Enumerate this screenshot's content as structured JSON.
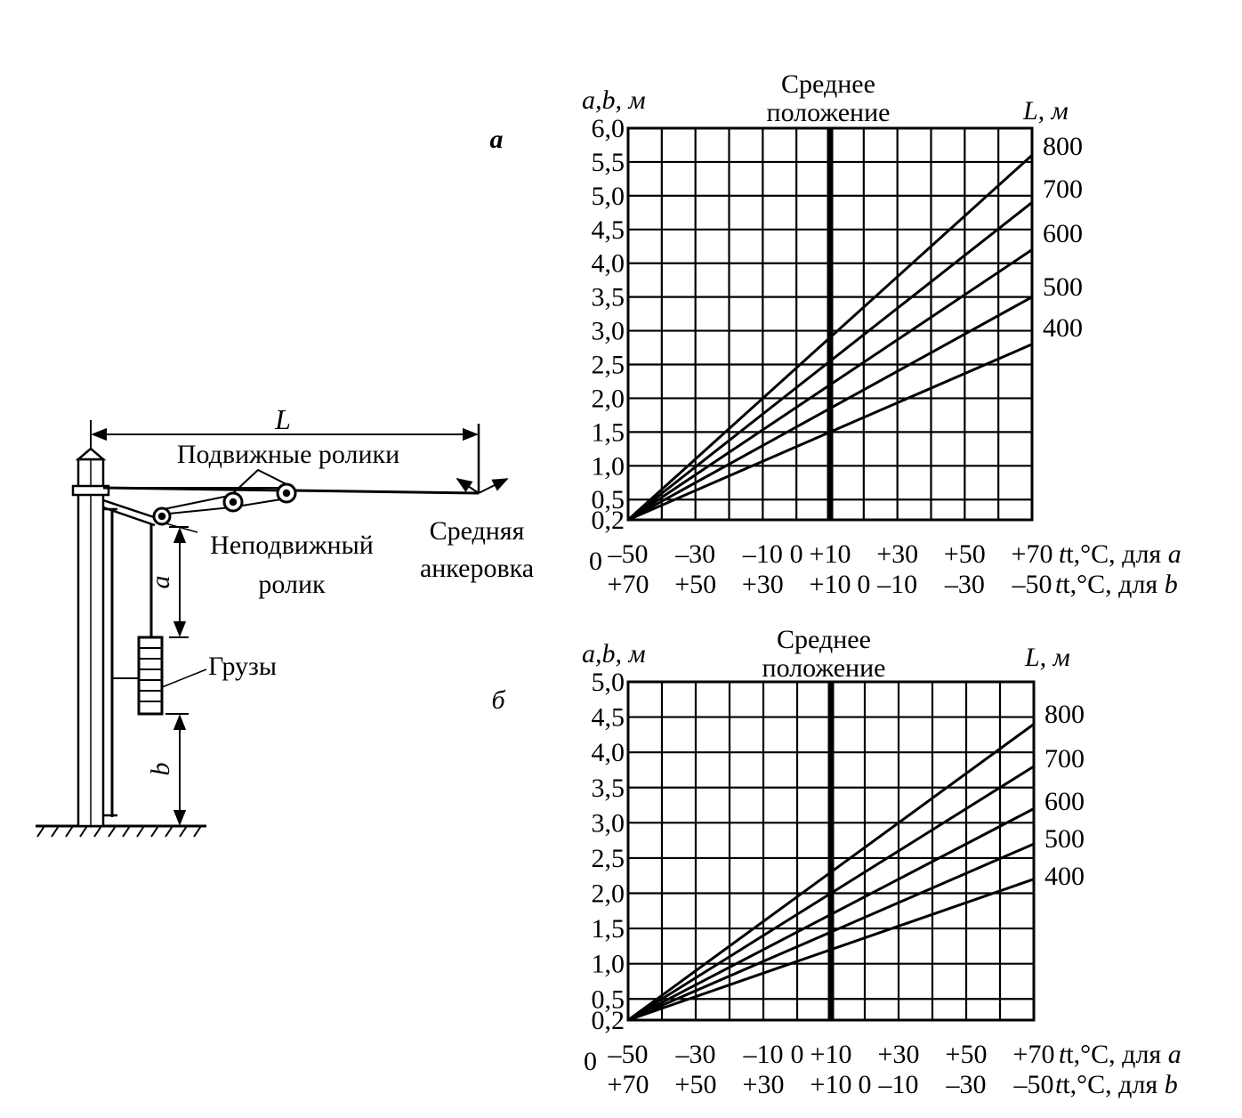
{
  "diagram": {
    "length_label": "L",
    "movable_rollers_label": "Подвижные ролики",
    "fixed_roller_label_line1": "Неподвижный",
    "fixed_roller_label_line2": "ролик",
    "mid_anchor_label_line1": "Средняя",
    "mid_anchor_label_line2": "анкеровка",
    "distance_a_label": "a",
    "weights_label": "Грузы",
    "distance_b_label": "b"
  },
  "chart_data": [
    {
      "type": "line",
      "panel_label": "a",
      "title_line1": "Среднее",
      "title_line2": "положение",
      "ylabel": "a,b, м",
      "series_label_header": "L, м",
      "ylim": [
        0.2,
        6.0
      ],
      "y_ticks": [
        "6,0",
        "5,5",
        "5,0",
        "4,5",
        "4,0",
        "3,5",
        "3,0",
        "2,5",
        "2,0",
        "1,5",
        "1,0",
        "0,5",
        "0,2"
      ],
      "origin_label": "0",
      "x_ticks_a": [
        "–50",
        "–30",
        "–10",
        "0",
        "+10",
        "+30",
        "+50",
        "+70"
      ],
      "x_label_a_prefix": "t,°C, для ",
      "x_label_a_var": "a",
      "x_ticks_b": [
        "+70",
        "+50",
        "+30",
        "+10",
        "0",
        "–10",
        "–30",
        "–50"
      ],
      "x_label_b_prefix": "t,°C, для ",
      "x_label_b_var": "b",
      "xlim": [
        -50,
        70
      ],
      "middle_position_t": 10,
      "series": [
        {
          "name": "800",
          "x": [
            -50,
            70
          ],
          "y": [
            0.2,
            5.6
          ]
        },
        {
          "name": "700",
          "x": [
            -50,
            70
          ],
          "y": [
            0.2,
            4.9
          ]
        },
        {
          "name": "600",
          "x": [
            -50,
            70
          ],
          "y": [
            0.2,
            4.2
          ]
        },
        {
          "name": "500",
          "x": [
            -50,
            70
          ],
          "y": [
            0.2,
            3.5
          ]
        },
        {
          "name": "400",
          "x": [
            -50,
            70
          ],
          "y": [
            0.2,
            2.8
          ]
        }
      ]
    },
    {
      "type": "line",
      "panel_label": "б",
      "title_line1": "Среднее",
      "title_line2": "положение",
      "ylabel": "a,b, м",
      "series_label_header": "L, м",
      "ylim": [
        0.2,
        5.0
      ],
      "y_ticks": [
        "5,0",
        "4,5",
        "4,0",
        "3,5",
        "3,0",
        "2,5",
        "2,0",
        "1,5",
        "1,0",
        "0,5",
        "0,2"
      ],
      "origin_label": "0",
      "x_ticks_a": [
        "–50",
        "–30",
        "–10",
        "0",
        "+10",
        "+30",
        "+50",
        "+70"
      ],
      "x_label_a_prefix": "t,°C, для ",
      "x_label_a_var": "a",
      "x_ticks_b": [
        "+70",
        "+50",
        "+30",
        "+10",
        "0",
        "–10",
        "–30",
        "–50"
      ],
      "x_label_b_prefix": "t,°C, для ",
      "x_label_b_var": "b",
      "xlim": [
        -50,
        70
      ],
      "middle_position_t": 10,
      "series": [
        {
          "name": "800",
          "x": [
            -50,
            70
          ],
          "y": [
            0.2,
            4.4
          ]
        },
        {
          "name": "700",
          "x": [
            -50,
            70
          ],
          "y": [
            0.2,
            3.8
          ]
        },
        {
          "name": "600",
          "x": [
            -50,
            70
          ],
          "y": [
            0.2,
            3.2
          ]
        },
        {
          "name": "500",
          "x": [
            -50,
            70
          ],
          "y": [
            0.2,
            2.7
          ]
        },
        {
          "name": "400",
          "x": [
            -50,
            70
          ],
          "y": [
            0.2,
            2.2
          ]
        }
      ]
    }
  ]
}
